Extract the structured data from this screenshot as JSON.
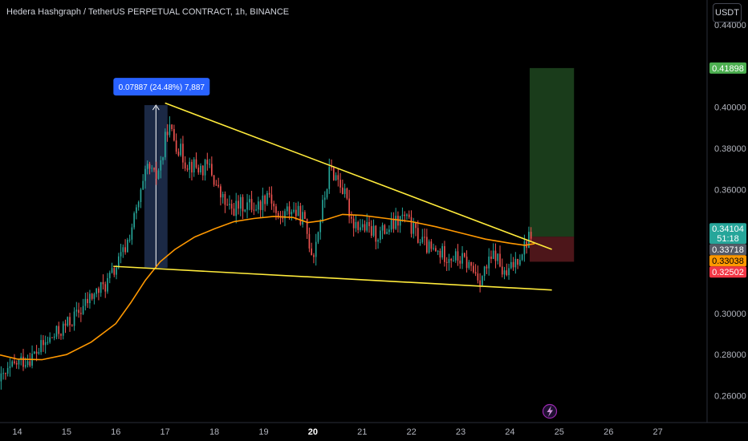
{
  "header": {
    "title": "Hedera Hashgraph / TetherUS PERPETUAL CONTRACT, 1h, BINANCE",
    "currency": "USDT"
  },
  "colors": {
    "up": "#26a69a",
    "down": "#ef5350",
    "ma": "#ff9800",
    "trendline": "#ffeb3b",
    "target_zone": "#1e4620",
    "stop_zone": "#5a1a1f",
    "measure_box": "#1e2d4d",
    "label_blue": "#2962ff"
  },
  "chart_data": {
    "type": "candlestick",
    "symbol": "Hedera Hashgraph / TetherUS PERPETUAL CONTRACT",
    "interval": "1h",
    "exchange": "BINANCE",
    "x_ticks": [
      "14",
      "15",
      "16",
      "17",
      "18",
      "19",
      "20",
      "21",
      "22",
      "23",
      "24",
      "25",
      "26",
      "27"
    ],
    "x_tick_bold": "20",
    "y_ticks": [
      "0.44000",
      "0.40000",
      "0.38000",
      "0.36000",
      "0.30000",
      "0.28000",
      "0.26000"
    ],
    "ylim": [
      0.247,
      0.452
    ],
    "xlim": [
      13.65,
      28.0
    ],
    "price_tags": [
      {
        "label": "0.41898",
        "value": 0.41898,
        "bg": "#4caf50",
        "fg": "#ffffff"
      },
      {
        "label": "0.34104",
        "value": 0.34104,
        "bg": "#26a69a",
        "fg": "#ffffff",
        "sub": "51:18"
      },
      {
        "label": "0.33718",
        "value": 0.33718,
        "bg": "#555a66",
        "fg": "#ffffff"
      },
      {
        "label": "0.33038",
        "value": 0.33038,
        "bg": "#ff9800",
        "fg": "#000000"
      },
      {
        "label": "0.32502",
        "value": 0.32502,
        "bg": "#f23645",
        "fg": "#ffffff"
      }
    ],
    "measurement": {
      "label": "0.07887 (24.48%) 7,887",
      "from_date": 16.58,
      "to_date": 17.05,
      "low": 0.322,
      "high": 0.401
    },
    "trendlines": [
      {
        "name": "upper",
        "from": [
          17.0,
          0.402
        ],
        "to": [
          24.85,
          0.331
        ]
      },
      {
        "name": "lower",
        "from": [
          15.95,
          0.3228
        ],
        "to": [
          24.85,
          0.3113
        ]
      }
    ],
    "position": {
      "from_date": 24.4,
      "to_date": 25.3,
      "entry": 0.33718,
      "target": 0.41898,
      "stop": 0.32502
    },
    "moving_average": {
      "name": "MA",
      "points": [
        [
          13.65,
          0.2798
        ],
        [
          14.0,
          0.2778
        ],
        [
          14.5,
          0.2775
        ],
        [
          15.0,
          0.28
        ],
        [
          15.5,
          0.286
        ],
        [
          16.0,
          0.295
        ],
        [
          16.3,
          0.305
        ],
        [
          16.6,
          0.316
        ],
        [
          16.9,
          0.325
        ],
        [
          17.2,
          0.331
        ],
        [
          17.6,
          0.337
        ],
        [
          18.0,
          0.341
        ],
        [
          18.4,
          0.3445
        ],
        [
          18.8,
          0.346
        ],
        [
          19.2,
          0.347
        ],
        [
          19.6,
          0.3465
        ],
        [
          19.9,
          0.344
        ],
        [
          20.2,
          0.345
        ],
        [
          20.6,
          0.348
        ],
        [
          21.0,
          0.3475
        ],
        [
          21.5,
          0.346
        ],
        [
          22.0,
          0.3445
        ],
        [
          22.5,
          0.342
        ],
        [
          23.0,
          0.339
        ],
        [
          23.5,
          0.336
        ],
        [
          24.0,
          0.334
        ],
        [
          24.3,
          0.333
        ],
        [
          24.5,
          0.3338
        ]
      ]
    },
    "candle_path": [
      [
        13.65,
        0.267
      ],
      [
        14.0,
        0.276
      ],
      [
        14.3,
        0.279
      ],
      [
        14.6,
        0.286
      ],
      [
        14.9,
        0.292
      ],
      [
        15.2,
        0.299
      ],
      [
        15.5,
        0.308
      ],
      [
        15.8,
        0.314
      ],
      [
        16.0,
        0.322
      ],
      [
        16.2,
        0.332
      ],
      [
        16.45,
        0.352
      ],
      [
        16.65,
        0.371
      ],
      [
        16.8,
        0.365
      ],
      [
        16.95,
        0.376
      ],
      [
        17.05,
        0.391
      ],
      [
        17.2,
        0.384
      ],
      [
        17.4,
        0.374
      ],
      [
        17.7,
        0.37
      ],
      [
        17.9,
        0.371
      ],
      [
        18.1,
        0.358
      ],
      [
        18.3,
        0.35
      ],
      [
        18.6,
        0.353
      ],
      [
        18.9,
        0.352
      ],
      [
        19.1,
        0.36
      ],
      [
        19.3,
        0.345
      ],
      [
        19.55,
        0.351
      ],
      [
        19.8,
        0.346
      ],
      [
        20.0,
        0.328
      ],
      [
        20.2,
        0.352
      ],
      [
        20.35,
        0.37
      ],
      [
        20.55,
        0.364
      ],
      [
        20.8,
        0.345
      ],
      [
        21.0,
        0.342
      ],
      [
        21.3,
        0.338
      ],
      [
        21.6,
        0.342
      ],
      [
        21.85,
        0.347
      ],
      [
        22.1,
        0.338
      ],
      [
        22.4,
        0.33
      ],
      [
        22.8,
        0.328
      ],
      [
        23.1,
        0.325
      ],
      [
        23.4,
        0.317
      ],
      [
        23.7,
        0.329
      ],
      [
        23.9,
        0.317
      ],
      [
        24.1,
        0.325
      ],
      [
        24.3,
        0.333
      ],
      [
        24.45,
        0.34
      ]
    ],
    "candle_count": 240,
    "candle_seed": 42
  }
}
